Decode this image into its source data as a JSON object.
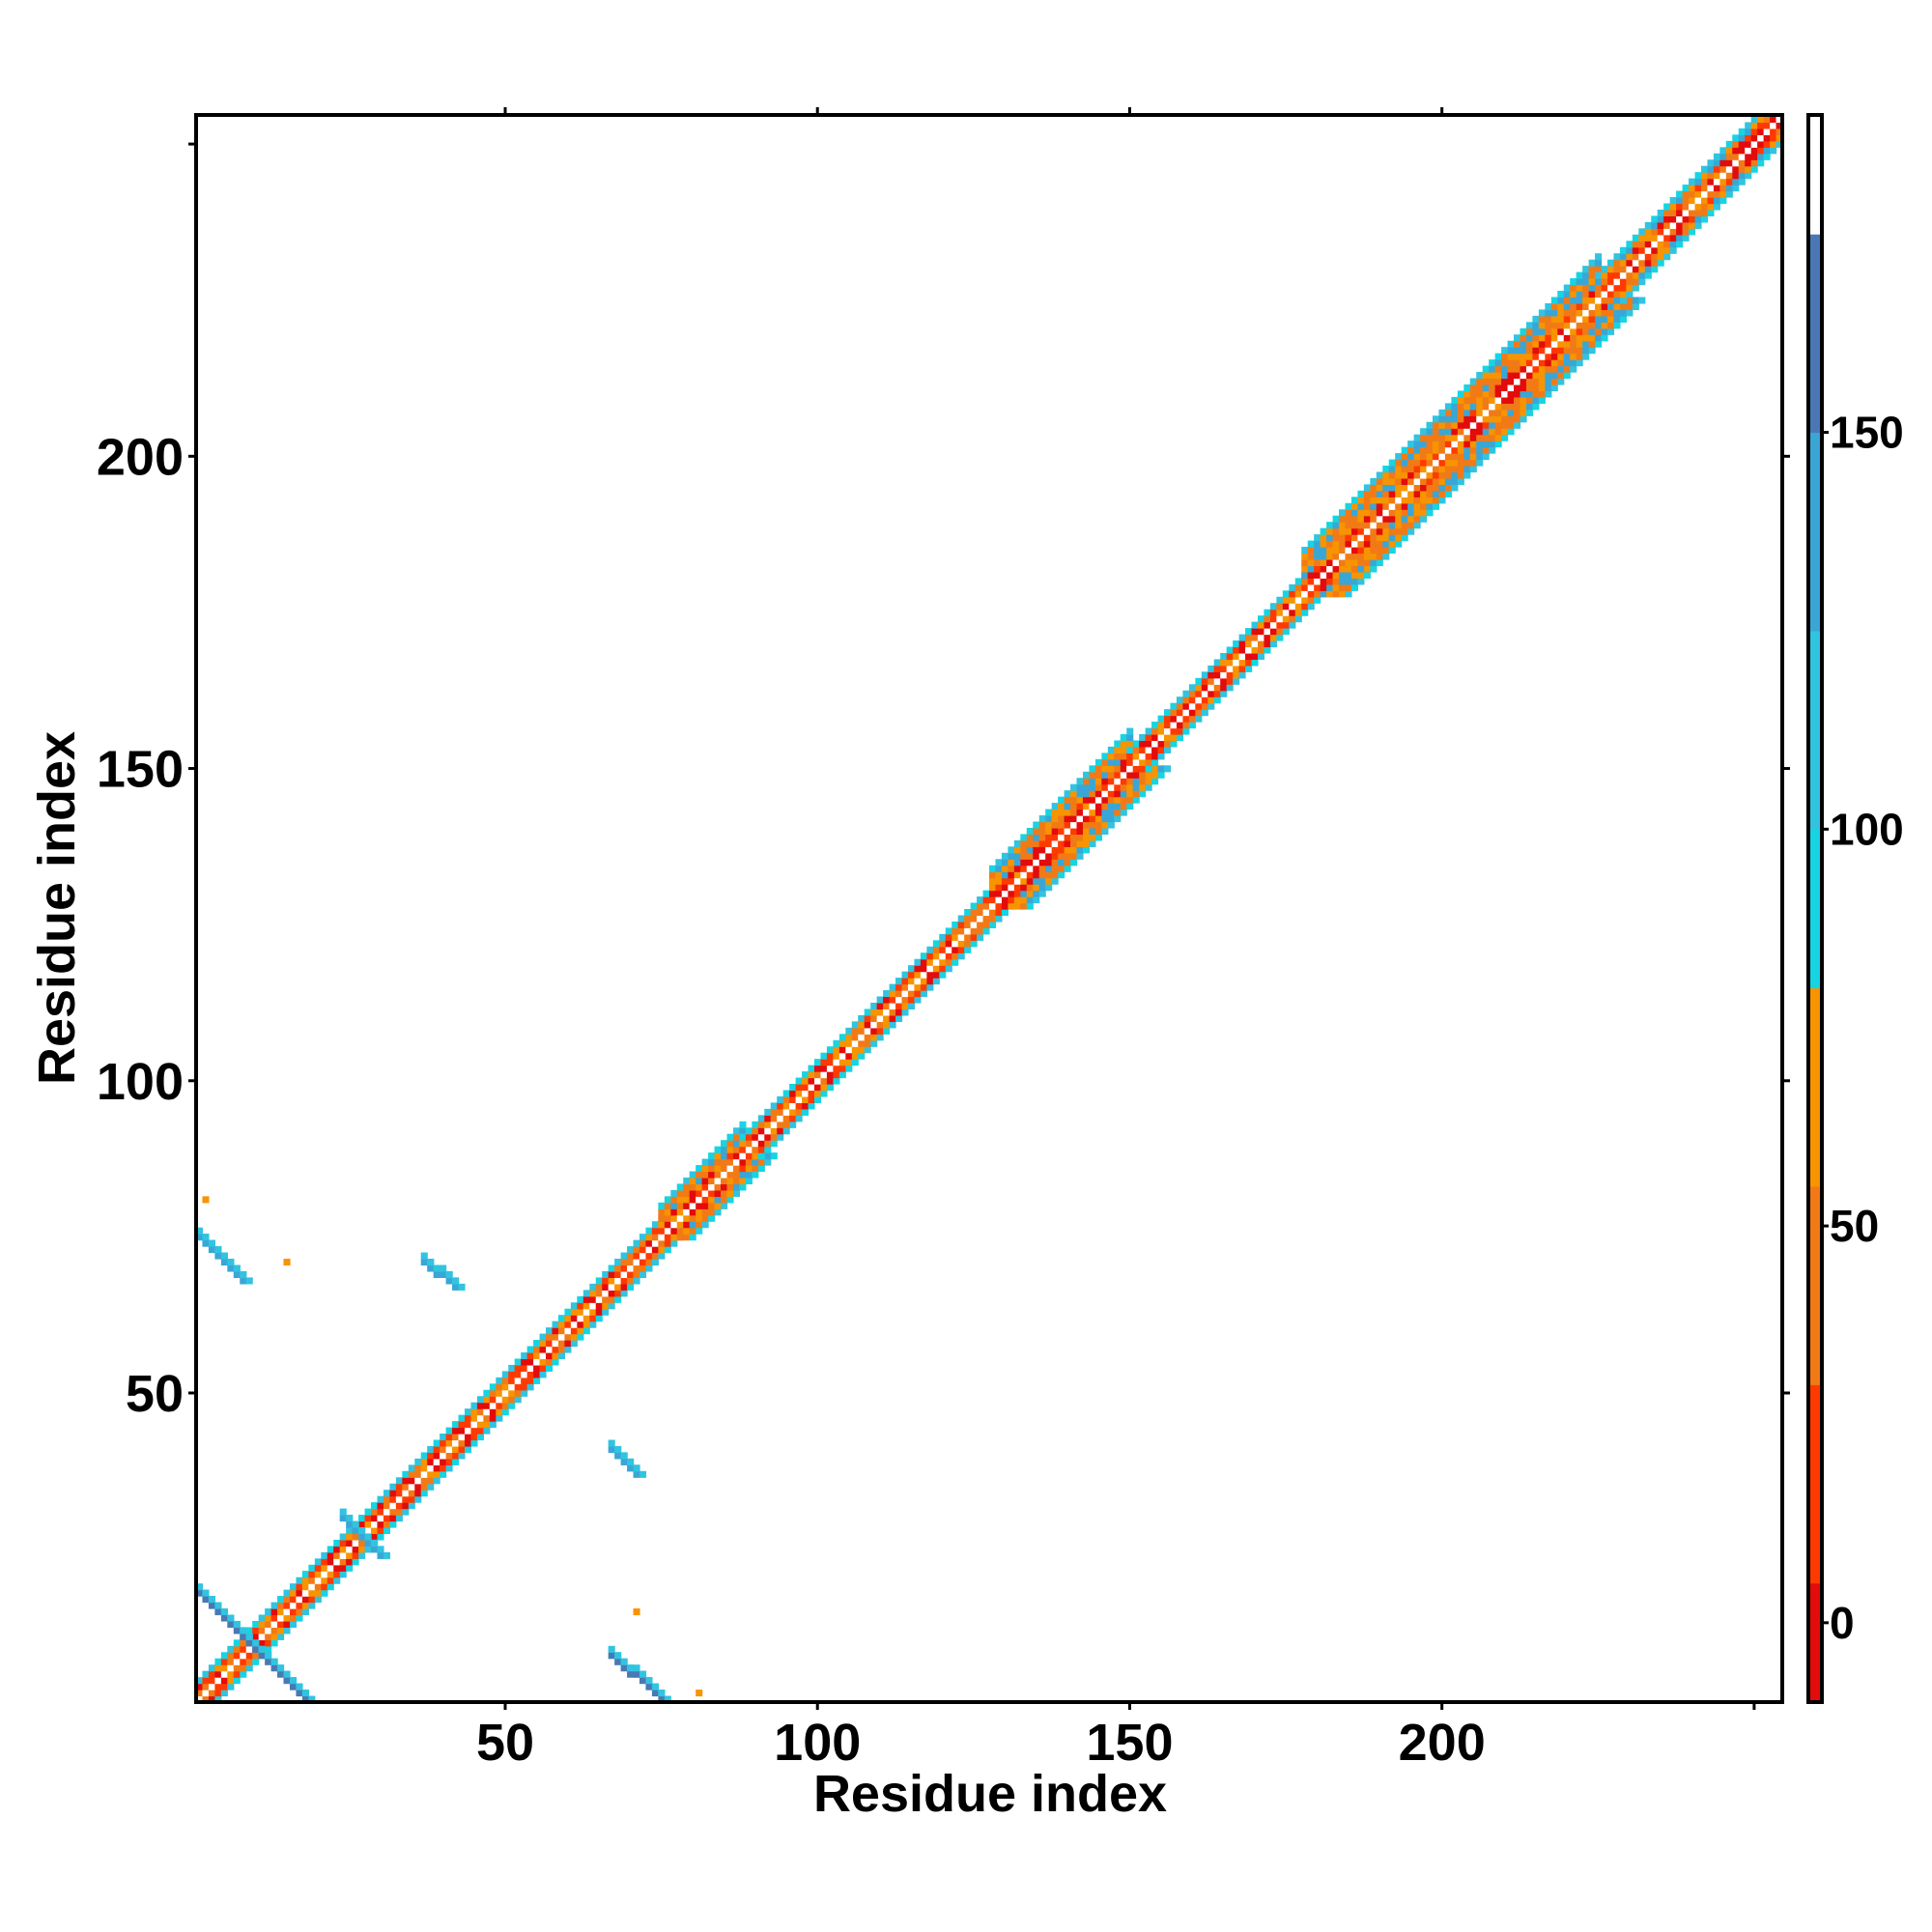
{
  "chart_data": {
    "type": "heatmap",
    "title": "",
    "xlabel": "Residue index",
    "ylabel": "Residue index",
    "xlim": [
      1,
      254
    ],
    "ylim": [
      1,
      254
    ],
    "x_ticks": [
      "50",
      "100",
      "150",
      "200"
    ],
    "y_ticks": [
      "50",
      "100",
      "150",
      "200"
    ],
    "x_tick_values": [
      50,
      100,
      150,
      200
    ],
    "y_tick_values": [
      50,
      100,
      150,
      200
    ],
    "grid": false,
    "colorbar": {
      "range": [
        -10,
        190
      ],
      "ticks": [
        "0",
        "50",
        "100",
        "150"
      ],
      "tick_values": [
        0,
        50,
        100,
        150
      ],
      "segments": [
        {
          "from": -10,
          "to": 5,
          "color": "#e30b0b"
        },
        {
          "from": 5,
          "to": 30,
          "color": "#ff3a00"
        },
        {
          "from": 30,
          "to": 55,
          "color": "#f27a16"
        },
        {
          "from": 55,
          "to": 80,
          "color": "#f79400"
        },
        {
          "from": 80,
          "to": 100,
          "color": "#17d4e3"
        },
        {
          "from": 100,
          "to": 125,
          "color": "#30c4e0"
        },
        {
          "from": 125,
          "to": 150,
          "color": "#3aa6d6"
        },
        {
          "from": 150,
          "to": 175,
          "color": "#4a78b4"
        },
        {
          "from": 175,
          "to": 190,
          "color": "#ffffff"
        }
      ]
    },
    "diagonal_bands": [
      {
        "start": 1,
        "end": 18,
        "width": 3
      },
      {
        "start": 18,
        "end": 75,
        "width": 3
      },
      {
        "start": 75,
        "end": 88,
        "width": 5
      },
      {
        "start": 88,
        "end": 128,
        "width": 3
      },
      {
        "start": 128,
        "end": 150,
        "width": 6
      },
      {
        "start": 150,
        "end": 178,
        "width": 3
      },
      {
        "start": 178,
        "end": 225,
        "width": 7
      },
      {
        "start": 225,
        "end": 254,
        "width": 4
      }
    ],
    "off_diagonal_contacts": [
      {
        "i_start": 1,
        "j_start": 75,
        "i_end": 8,
        "j_end": 68,
        "color": "#3aa6d6"
      },
      {
        "i_start": 1,
        "j_start": 18,
        "i_end": 18,
        "j_end": 1,
        "color": "#4a78b4"
      },
      {
        "i_start": 37,
        "j_start": 71,
        "i_end": 42,
        "j_end": 67,
        "color": "#3aa6d6"
      },
      {
        "i_start": 67,
        "j_start": 41,
        "i_end": 71,
        "j_end": 37,
        "color": "#3aa6d6"
      },
      {
        "i_start": 67,
        "j_start": 8,
        "i_end": 75,
        "j_end": 1,
        "color": "#4a78b4"
      },
      {
        "i_start": 24,
        "j_start": 30,
        "i_end": 30,
        "j_end": 24,
        "color": "#3aa6d6"
      }
    ],
    "isolated_points": [
      {
        "x": 2,
        "y": 81,
        "value": 60
      },
      {
        "x": 15,
        "y": 71,
        "value": 60
      },
      {
        "x": 71,
        "y": 15,
        "value": 60
      },
      {
        "x": 81,
        "y": 2,
        "value": 60
      }
    ]
  }
}
